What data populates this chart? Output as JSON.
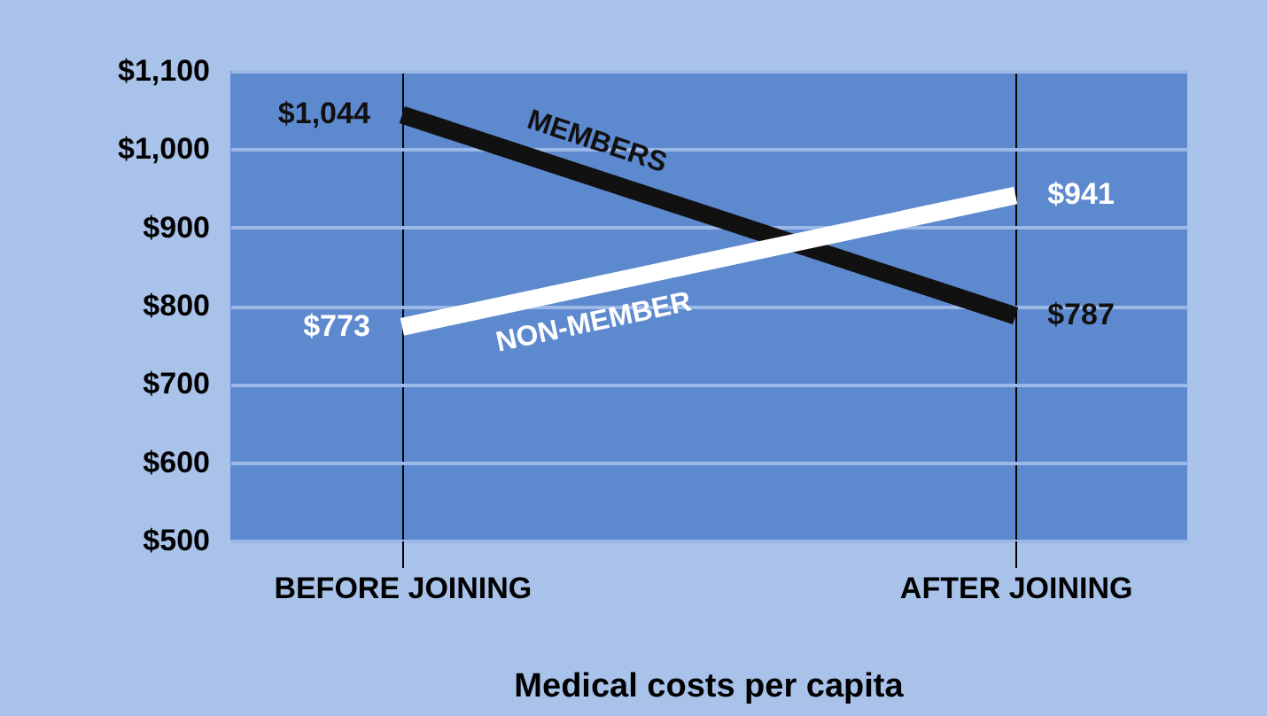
{
  "chart_data": {
    "type": "line",
    "title": "Medical costs per capita",
    "categories": [
      "BEFORE JOINING",
      "AFTER JOINING"
    ],
    "series": [
      {
        "name": "MEMBERS",
        "color": "#111111",
        "values": [
          1044,
          787
        ],
        "value_labels": [
          "$1,044",
          "$787"
        ]
      },
      {
        "name": "NON-MEMBER",
        "color": "#ffffff",
        "values": [
          773,
          941
        ],
        "value_labels": [
          "$773",
          "$941"
        ]
      }
    ],
    "ylim": [
      500,
      1100
    ],
    "yticks": [
      {
        "value": 500,
        "label": "$500"
      },
      {
        "value": 600,
        "label": "$600"
      },
      {
        "value": 700,
        "label": "$700"
      },
      {
        "value": 800,
        "label": "$800"
      },
      {
        "value": 900,
        "label": "$900"
      },
      {
        "value": 1000,
        "label": "$1,000"
      },
      {
        "value": 1100,
        "label": "$1,100"
      }
    ],
    "grid": true,
    "legend": false,
    "marker": "none",
    "line_style": "solid"
  }
}
